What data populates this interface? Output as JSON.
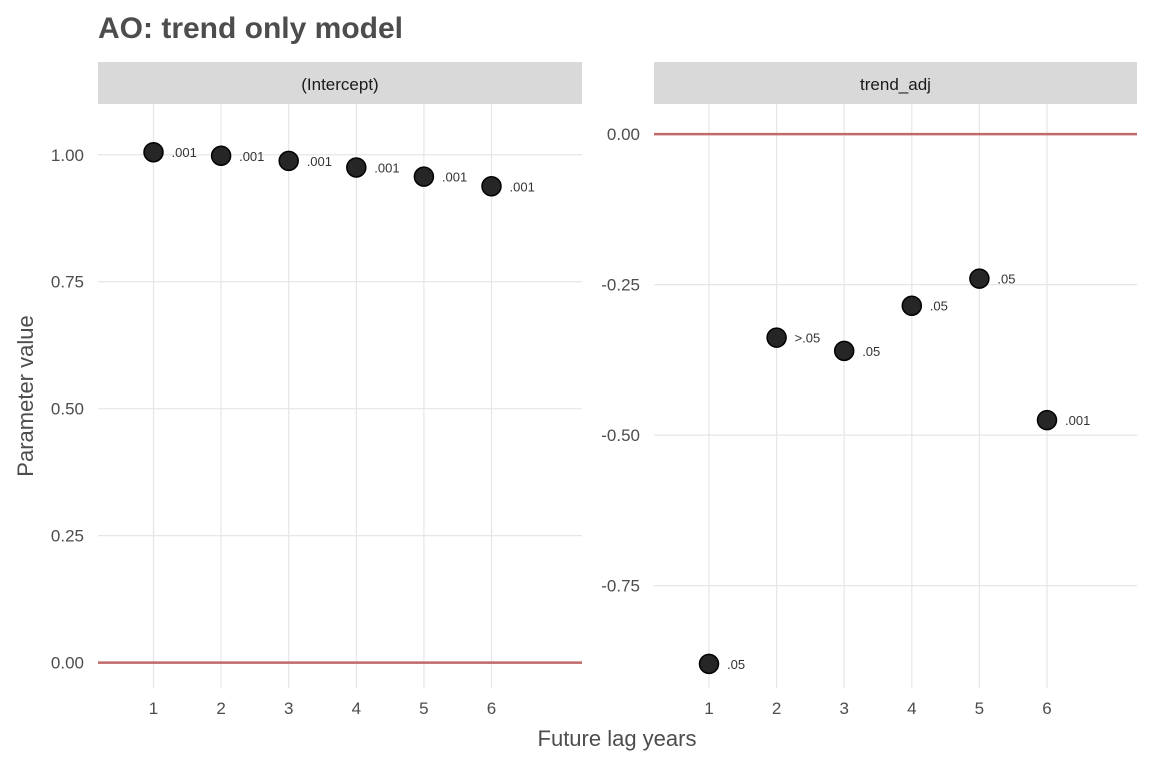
{
  "title": "AO: trend only model",
  "chart_data": {
    "type": "scatter",
    "title": "AO: trend only model",
    "xlabel": "Future lag years",
    "ylabel": "Parameter value",
    "grid": true,
    "reference_line": {
      "y": 0,
      "color": "#c0686a"
    },
    "point_color": "#262626",
    "x_ticks": [
      1,
      2,
      3,
      4,
      5,
      6
    ],
    "x_ticks_text": [
      "1",
      "2",
      "3",
      "4",
      "5",
      "6"
    ],
    "panels": [
      {
        "name": "(Intercept)",
        "ylim": [
          -0.05,
          1.1
        ],
        "y_ticks": [
          0.0,
          0.25,
          0.5,
          0.75,
          1.0
        ],
        "y_ticks_text": [
          "0.00",
          "0.25",
          "0.50",
          "0.75",
          "1.00"
        ],
        "x": [
          1,
          2,
          3,
          4,
          5,
          6
        ],
        "y": [
          1.005,
          0.998,
          0.988,
          0.975,
          0.957,
          0.938
        ],
        "point_labels": [
          ".001",
          ".001",
          ".001",
          ".001",
          ".001",
          ".001"
        ]
      },
      {
        "name": "trend_adj",
        "ylim": [
          -0.92,
          0.05
        ],
        "y_ticks": [
          -0.75,
          -0.5,
          -0.25,
          0.0
        ],
        "y_ticks_text": [
          "-0.75",
          "-0.50",
          "-0.25",
          "0.00"
        ],
        "x": [
          1,
          2,
          3,
          4,
          5,
          6
        ],
        "y": [
          -0.88,
          -0.338,
          -0.36,
          -0.285,
          -0.24,
          -0.475
        ],
        "point_labels": [
          ".05",
          ">.05",
          ".05",
          ".05",
          ".05",
          ".001"
        ]
      }
    ]
  }
}
